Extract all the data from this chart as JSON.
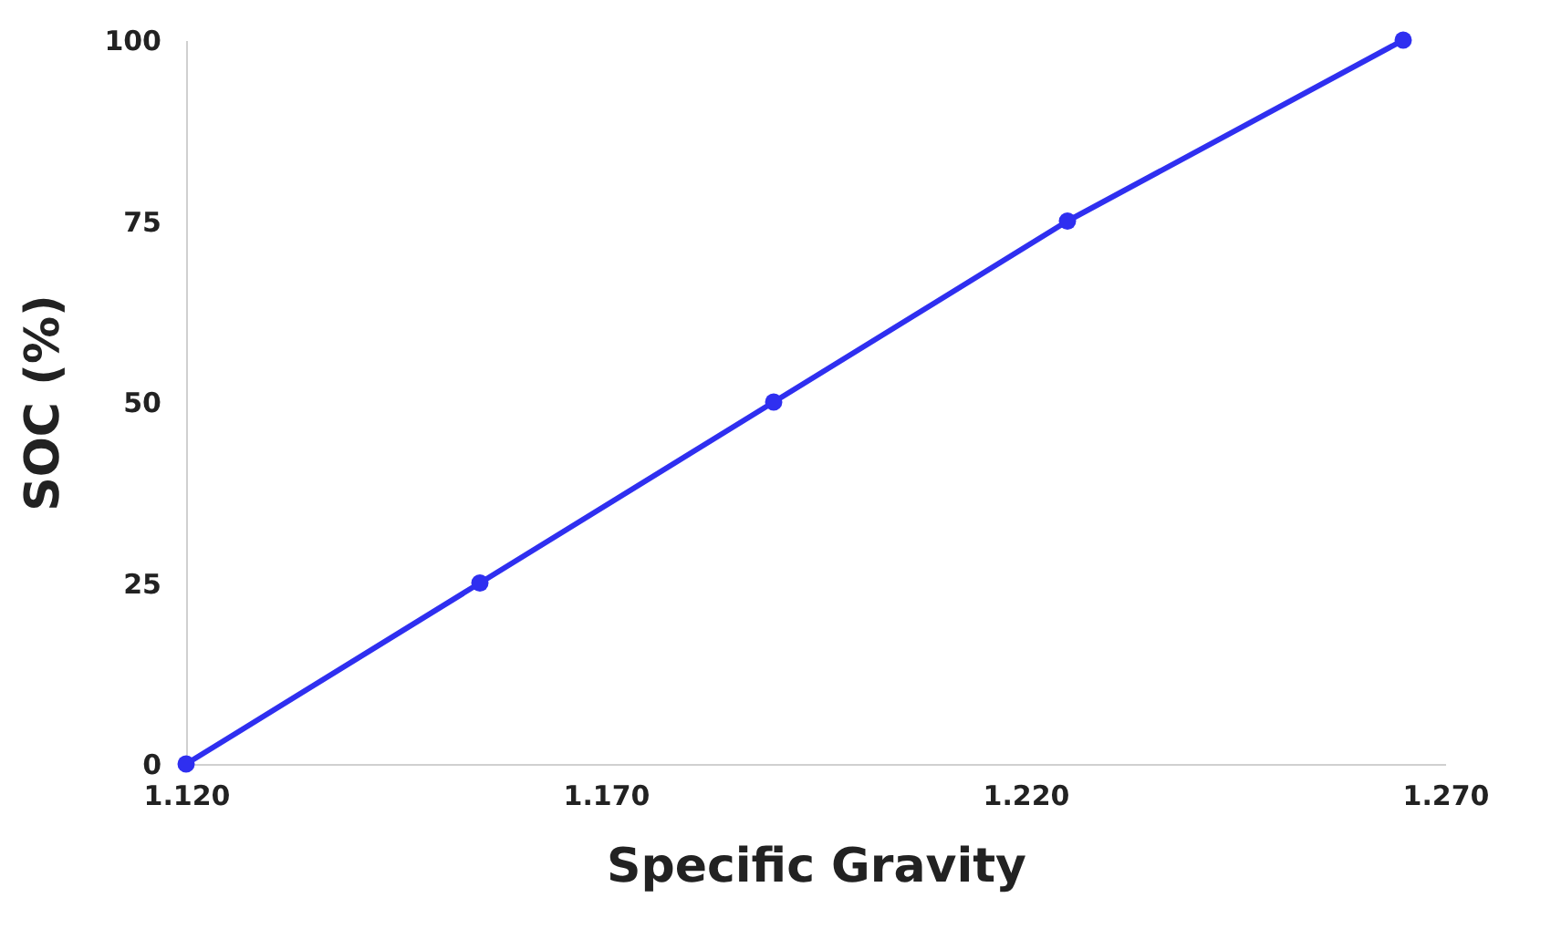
{
  "chart_data": {
    "type": "line",
    "xlabel": "Specific Gravity",
    "ylabel": "SOC (%)",
    "x": [
      1.12,
      1.155,
      1.19,
      1.225,
      1.265
    ],
    "series": [
      {
        "color": "#2f2ff0",
        "values": [
          0,
          25,
          50,
          75,
          100
        ]
      }
    ],
    "xlim": [
      1.12,
      1.27
    ],
    "xticks": [
      {
        "value": 1.12,
        "label": "1.120"
      },
      {
        "value": 1.17,
        "label": "1.170"
      },
      {
        "value": 1.22,
        "label": "1.220"
      },
      {
        "value": 1.27,
        "label": "1.270"
      }
    ],
    "ylim": [
      0,
      100
    ],
    "yticks": [
      0,
      25,
      50,
      75,
      100
    ],
    "grid": false,
    "marker": "circle",
    "line_style": "solid"
  }
}
